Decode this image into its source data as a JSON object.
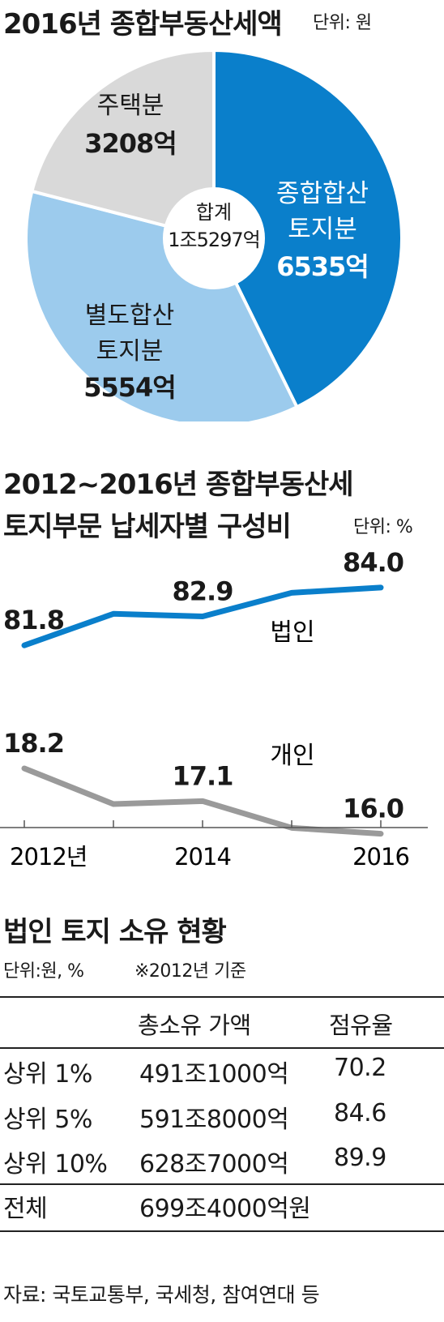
{
  "pie": {
    "title": "2016년 종합부동산세액",
    "unit": "단위: 원",
    "center_label": "합계",
    "center_value": "1조5297억",
    "slices": [
      {
        "label1": "종합합산",
        "label2": "토지분",
        "value_text": "6535억",
        "color": "#0a7fcb",
        "text_color": "#ffffff"
      },
      {
        "label1": "별도합산",
        "label2": "토지분",
        "value_text": "5554억",
        "color": "#9ccbed",
        "text_color": "#1a1a1a"
      },
      {
        "label1": "주택분",
        "label2": "",
        "value_text": "3208억",
        "color": "#d9d9d9",
        "text_color": "#1a1a1a"
      }
    ]
  },
  "chart_data": {
    "type": "line",
    "title": "2012~2016년 종합부동산세 토지부문 납세자별 구성비",
    "title_line1": "2012~2016년 종합부동산세",
    "title_line2": "토지부문 납세자별 구성비",
    "unit": "단위: %",
    "x": [
      2012,
      2013,
      2014,
      2015,
      2016
    ],
    "tick_labels": [
      "2012년",
      "2014",
      "2016"
    ],
    "series": [
      {
        "name": "법인",
        "values": [
          81.8,
          83.0,
          82.9,
          83.8,
          84.0
        ],
        "color": "#0a7fcb",
        "labels": [
          "81.8",
          "",
          "82.9",
          "",
          "84.0"
        ]
      },
      {
        "name": "개인",
        "values": [
          18.2,
          17.0,
          17.1,
          16.2,
          16.0
        ],
        "color": "#9a9a9a",
        "labels": [
          "18.2",
          "",
          "17.1",
          "",
          "16.0"
        ]
      }
    ],
    "slices": [
      {
        "name": "종합합산 토지분",
        "value": 6535
      },
      {
        "name": "별도합산 토지분",
        "value": 5554
      },
      {
        "name": "주택분",
        "value": 3208
      }
    ]
  },
  "table": {
    "title": "법인 토지 소유 현황",
    "unit": "단위:원, %",
    "note": "※2012년 기준",
    "headers": [
      "총소유 가액",
      "점유율"
    ],
    "rows": [
      {
        "label": "상위 1%",
        "value": "491조1000억",
        "share": "70.2"
      },
      {
        "label": "상위 5%",
        "value": "591조8000억",
        "share": "84.6"
      },
      {
        "label": "상위 10%",
        "value": "628조7000억",
        "share": "89.9"
      }
    ],
    "total_label": "전체",
    "total_value": "699조4000억원"
  },
  "source": "자료: 국토교통부, 국세청, 참여연대 등"
}
